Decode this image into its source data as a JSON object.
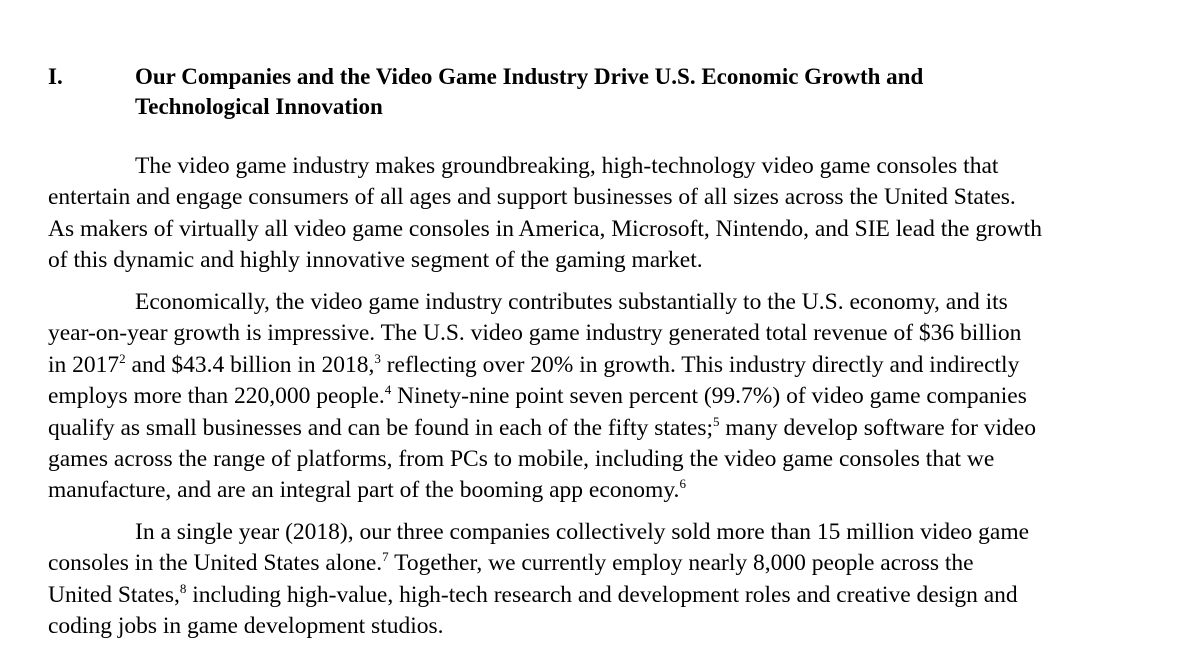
{
  "section": {
    "number": "I.",
    "title_line1": "Our Companies and the Video Game Industry Drive U.S. Economic Growth and",
    "title_line2": "Technological Innovation"
  },
  "paragraphs": [
    {
      "lines": [
        "The video game industry makes groundbreaking, high-technology video game consoles that",
        "entertain and engage consumers of all ages and support businesses of all sizes across the United States.",
        "As makers of virtually all video game consoles in America, Microsoft, Nintendo, and SIE lead the growth",
        "of this dynamic and highly innovative segment of the gaming market."
      ]
    },
    {
      "l1": "Economically, the video game industry contributes substantially to the U.S. economy, and its",
      "l2": "year-on-year growth is impressive.  The U.S. video game industry generated total revenue of $36 billion",
      "l3a": "in 2017",
      "fn2": "2",
      "l3b": " and $43.4 billion in 2018,",
      "fn3": "3",
      "l3c": " reflecting over 20% in growth.  This industry directly and indirectly",
      "l4a": "employs more than 220,000 people.",
      "fn4": "4",
      "l4b": "  Ninety-nine point seven percent (99.7%) of video game companies",
      "l5a": "qualify as small businesses and can be found in each of the fifty states;",
      "fn5": "5",
      "l5b": " many develop software for video",
      "l6": "games across the range of platforms, from PCs to mobile, including the video game consoles that we",
      "l7a": "manufacture, and are an integral part of the booming app economy.",
      "fn6": "6"
    },
    {
      "l1": "In a single year (2018), our three companies collectively sold more than 15 million video game",
      "l2a": "consoles in the United States alone.",
      "fn7": "7",
      "l2b": "  Together, we currently employ nearly 8,000 people across the",
      "l3a": "United States,",
      "fn8": "8",
      "l3b": " including high-value, high-tech research and development roles and creative design and",
      "l4": "coding jobs in game development studios."
    }
  ]
}
